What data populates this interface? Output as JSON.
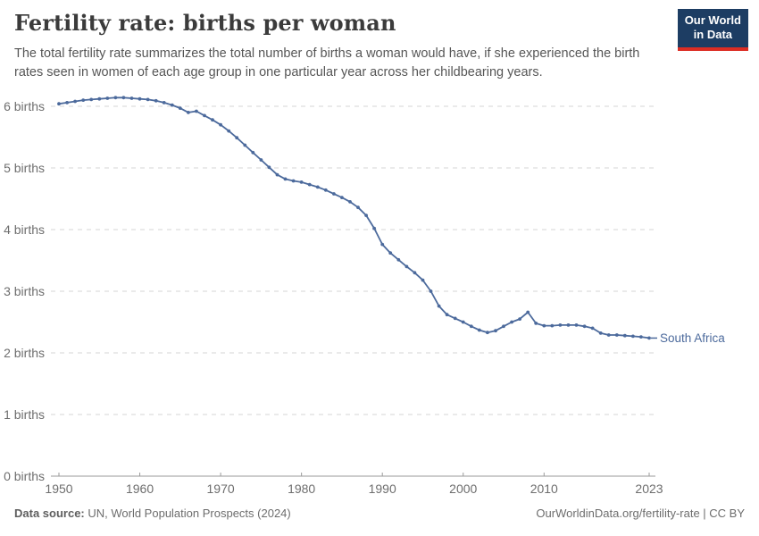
{
  "header": {
    "title": "Fertility rate: births per woman",
    "subtitle": "The total fertility rate summarizes the total number of births a woman would have, if she experienced the birth rates seen in women of each age group in one particular year across her childbearing years.",
    "logo_line1": "Our World",
    "logo_line2": "in Data"
  },
  "colors": {
    "line": "#4c6a9c",
    "logo_bg": "#1d3d63",
    "logo_bar": "#dc2d23",
    "gridline": "#d5d5d5",
    "axis_line": "#9a9a9a"
  },
  "chart_data": {
    "type": "line",
    "title": "Fertility rate: births per woman",
    "xlabel": "",
    "ylabel": "",
    "ylim": [
      0,
      6.2
    ],
    "grid": "horizontal-dashed",
    "legend": "end-of-line-label",
    "yticks": [
      0,
      1,
      2,
      3,
      4,
      5,
      6
    ],
    "ytick_labels": [
      "0 births",
      "1 births",
      "2 births",
      "3 births",
      "4 births",
      "5 births",
      "6 births"
    ],
    "xticks": [
      1950,
      1960,
      1970,
      1980,
      1990,
      2000,
      2010,
      2023
    ],
    "x": [
      1950,
      1951,
      1952,
      1953,
      1954,
      1955,
      1956,
      1957,
      1958,
      1959,
      1960,
      1961,
      1962,
      1963,
      1964,
      1965,
      1966,
      1967,
      1968,
      1969,
      1970,
      1971,
      1972,
      1973,
      1974,
      1975,
      1976,
      1977,
      1978,
      1979,
      1980,
      1981,
      1982,
      1983,
      1984,
      1985,
      1986,
      1987,
      1988,
      1989,
      1990,
      1991,
      1992,
      1993,
      1994,
      1995,
      1996,
      1997,
      1998,
      1999,
      2000,
      2001,
      2002,
      2003,
      2004,
      2005,
      2006,
      2007,
      2008,
      2009,
      2010,
      2011,
      2012,
      2013,
      2014,
      2015,
      2016,
      2017,
      2018,
      2019,
      2020,
      2021,
      2022,
      2023
    ],
    "series": [
      {
        "name": "South Africa",
        "color": "#4c6a9c",
        "values": [
          6.04,
          6.06,
          6.08,
          6.1,
          6.11,
          6.12,
          6.13,
          6.14,
          6.14,
          6.13,
          6.12,
          6.11,
          6.09,
          6.06,
          6.02,
          5.97,
          5.9,
          5.92,
          5.85,
          5.78,
          5.7,
          5.6,
          5.49,
          5.37,
          5.25,
          5.13,
          5.01,
          4.89,
          4.82,
          4.79,
          4.77,
          4.73,
          4.69,
          4.64,
          4.58,
          4.52,
          4.45,
          4.36,
          4.23,
          4.02,
          3.76,
          3.62,
          3.51,
          3.4,
          3.3,
          3.18,
          3.0,
          2.76,
          2.62,
          2.56,
          2.5,
          2.43,
          2.37,
          2.33,
          2.36,
          2.43,
          2.5,
          2.55,
          2.66,
          2.48,
          2.44,
          2.44,
          2.45,
          2.45,
          2.45,
          2.43,
          2.4,
          2.32,
          2.29,
          2.29,
          2.28,
          2.27,
          2.26,
          2.24
        ]
      }
    ]
  },
  "footer": {
    "source_label": "Data source:",
    "source_text": " UN, World Population Prospects (2024)",
    "right_text": "OurWorldinData.org/fertility-rate | CC BY"
  }
}
